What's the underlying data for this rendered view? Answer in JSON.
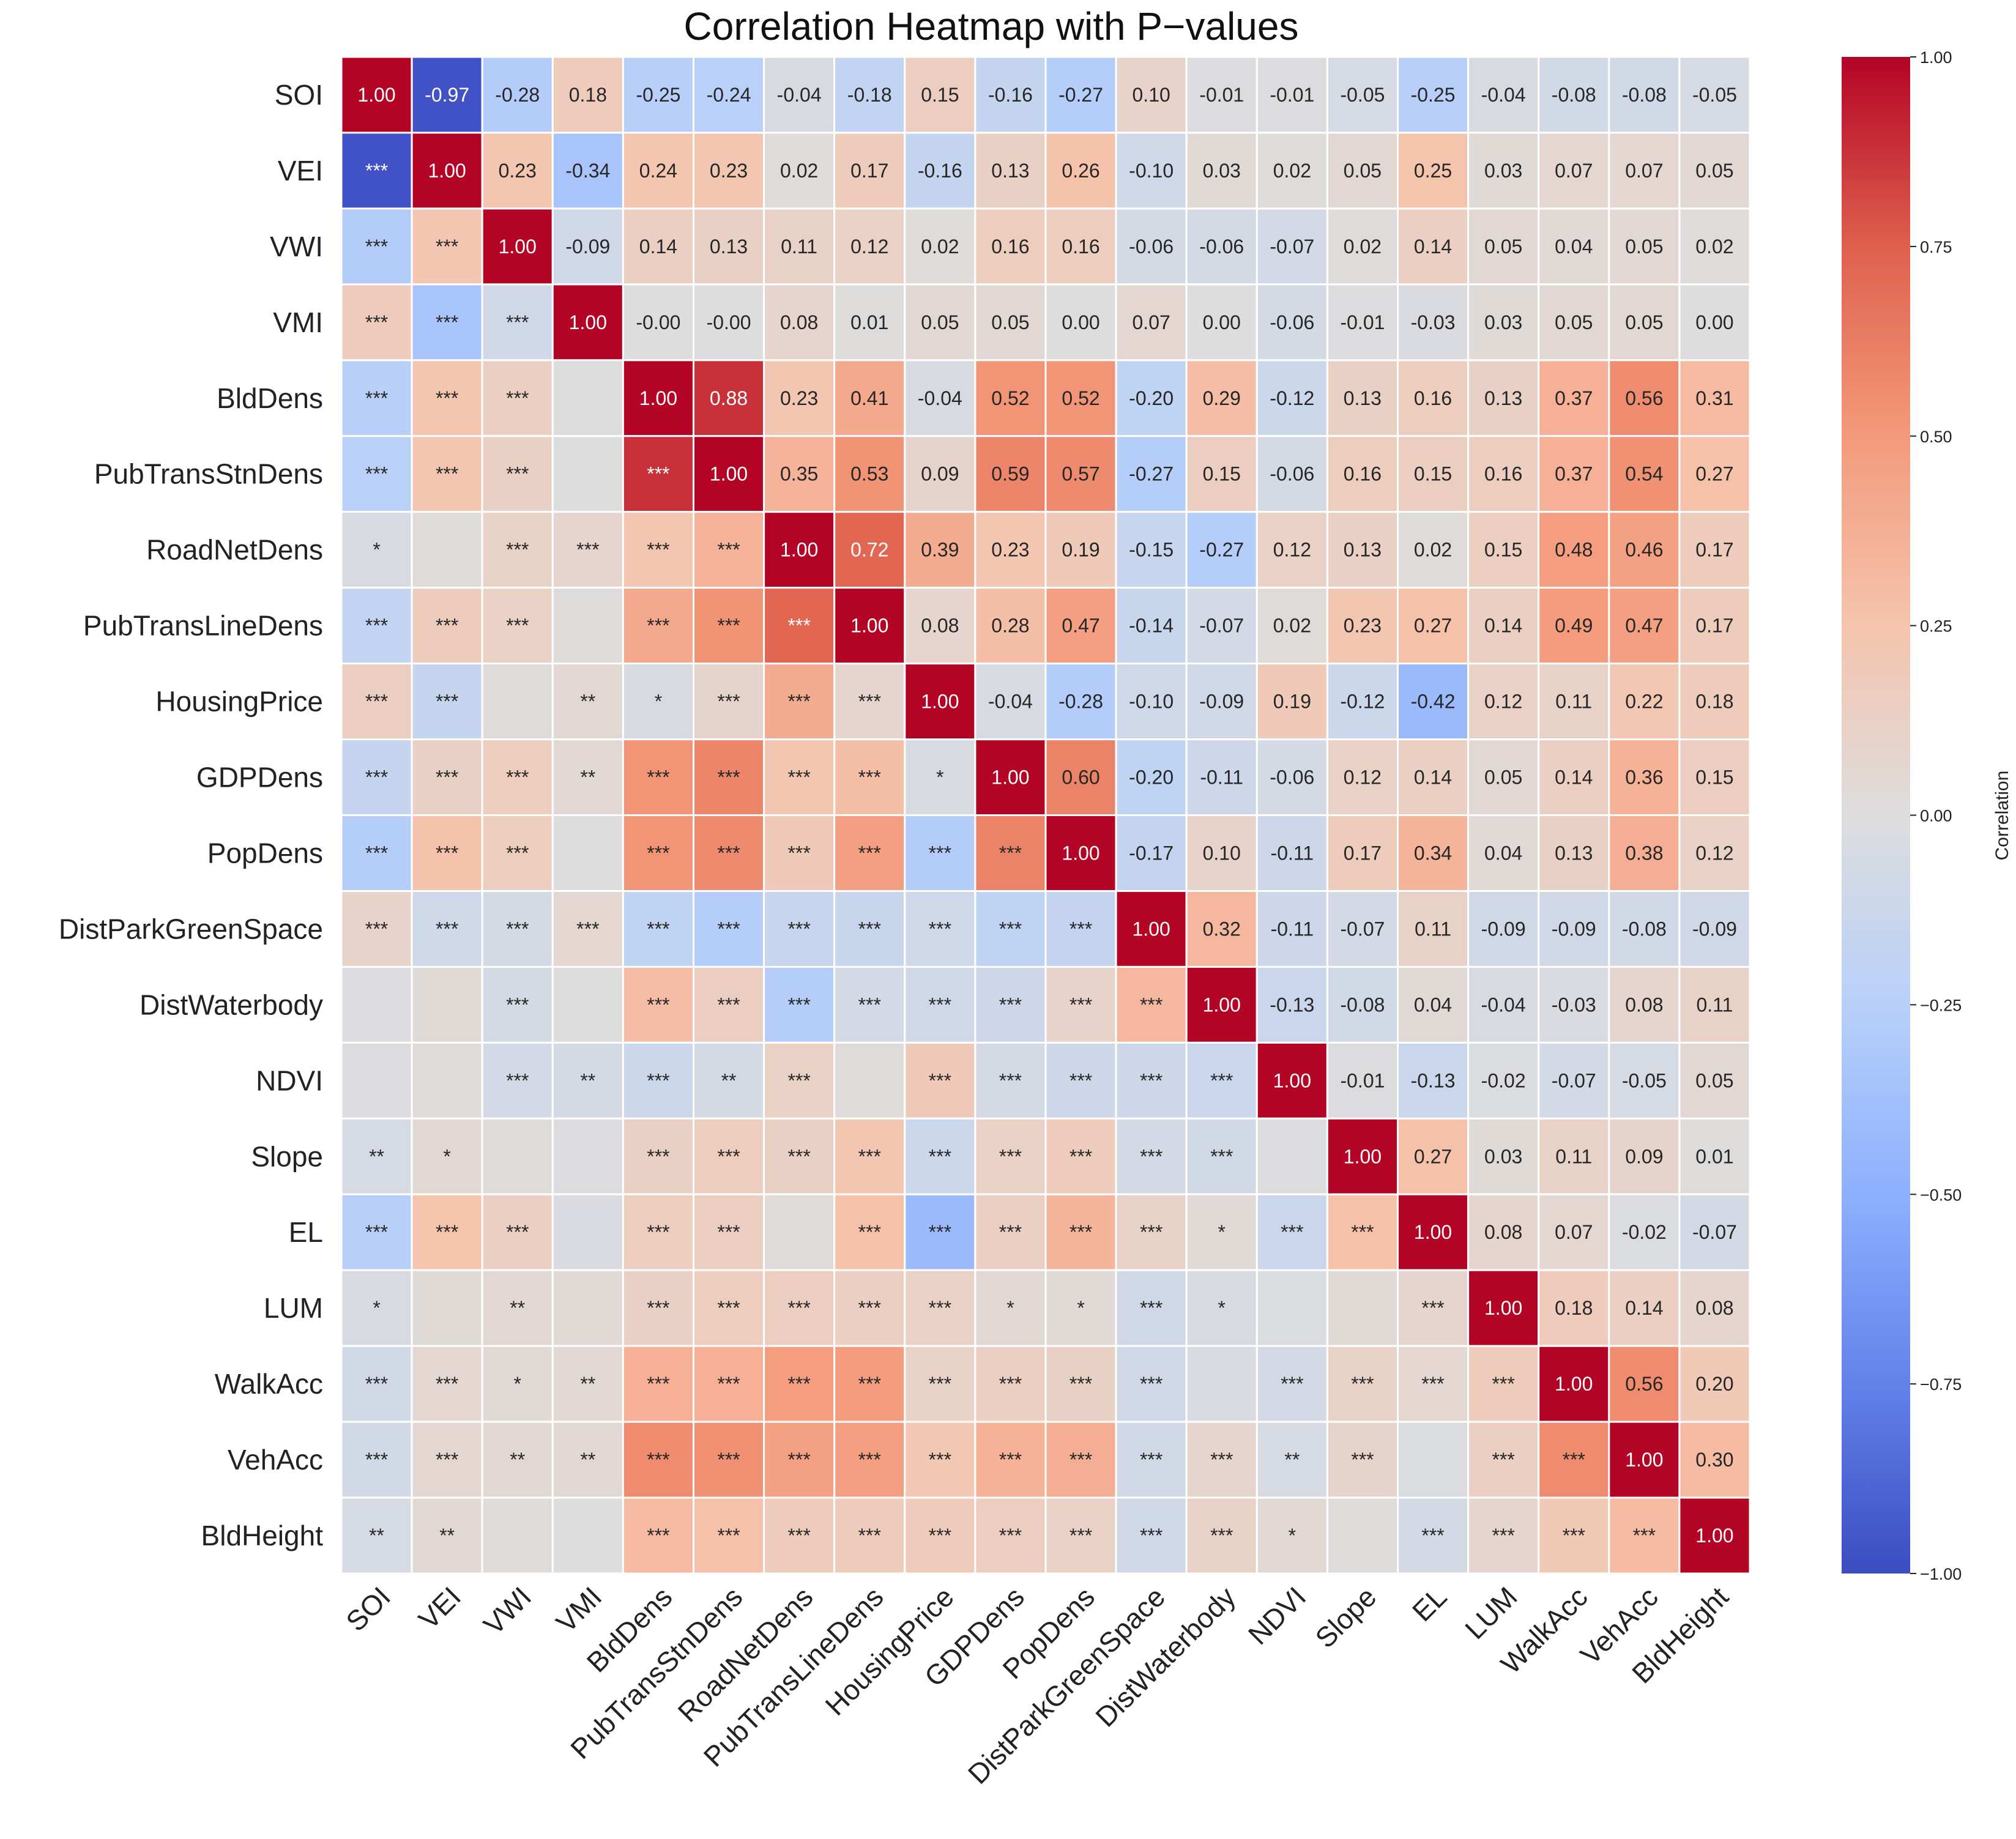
{
  "chart_data": {
    "type": "heatmap",
    "title": "Correlation Heatmap with P−values",
    "colorbar_label": "Correlation",
    "colorbar_ticks": [
      "1.00",
      "0.75",
      "0.50",
      "0.25",
      "0.00",
      "−0.25",
      "−0.50",
      "−0.75",
      "−1.00"
    ],
    "colorbar_tick_values": [
      1.0,
      0.75,
      0.5,
      0.25,
      0.0,
      -0.25,
      -0.5,
      -0.75,
      -1.0
    ],
    "vmin": -1.0,
    "vmax": 1.0,
    "colormap": "coolwarm",
    "variables": [
      "SOI",
      "VEI",
      "VWI",
      "VMI",
      "BldDens",
      "PubTransStnDens",
      "RoadNetDens",
      "PubTransLineDens",
      "HousingPrice",
      "GDPDens",
      "PopDens",
      "DistParkGreenSpace",
      "DistWaterbody",
      "NDVI",
      "Slope",
      "EL",
      "LUM",
      "WalkAcc",
      "VehAcc",
      "BldHeight"
    ],
    "upper_triangle_correlations": [
      [
        "1.00",
        "-0.97",
        "-0.28",
        "0.18",
        "-0.25",
        "-0.24",
        "-0.04",
        "-0.18",
        "0.15",
        "-0.16",
        "-0.27",
        "0.10",
        "-0.01",
        "-0.01",
        "-0.05",
        "-0.25",
        "-0.04",
        "-0.08",
        "-0.08",
        "-0.05"
      ],
      [
        "",
        "1.00",
        "0.23",
        "-0.34",
        "0.24",
        "0.23",
        "0.02",
        "0.17",
        "-0.16",
        "0.13",
        "0.26",
        "-0.10",
        "0.03",
        "0.02",
        "0.05",
        "0.25",
        "0.03",
        "0.07",
        "0.07",
        "0.05"
      ],
      [
        "",
        "",
        "1.00",
        "-0.09",
        "0.14",
        "0.13",
        "0.11",
        "0.12",
        "0.02",
        "0.16",
        "0.16",
        "-0.06",
        "-0.06",
        "-0.07",
        "0.02",
        "0.14",
        "0.05",
        "0.04",
        "0.05",
        "0.02"
      ],
      [
        "",
        "",
        "",
        "1.00",
        "-0.00",
        "-0.00",
        "0.08",
        "0.01",
        "0.05",
        "0.05",
        "0.00",
        "0.07",
        "0.00",
        "-0.06",
        "-0.01",
        "-0.03",
        "0.03",
        "0.05",
        "0.05",
        "0.00"
      ],
      [
        "",
        "",
        "",
        "",
        "1.00",
        "0.88",
        "0.23",
        "0.41",
        "-0.04",
        "0.52",
        "0.52",
        "-0.20",
        "0.29",
        "-0.12",
        "0.13",
        "0.16",
        "0.13",
        "0.37",
        "0.56",
        "0.31"
      ],
      [
        "",
        "",
        "",
        "",
        "",
        "1.00",
        "0.35",
        "0.53",
        "0.09",
        "0.59",
        "0.57",
        "-0.27",
        "0.15",
        "-0.06",
        "0.16",
        "0.15",
        "0.16",
        "0.37",
        "0.54",
        "0.27"
      ],
      [
        "",
        "",
        "",
        "",
        "",
        "",
        "1.00",
        "0.72",
        "0.39",
        "0.23",
        "0.19",
        "-0.15",
        "-0.27",
        "0.12",
        "0.13",
        "0.02",
        "0.15",
        "0.48",
        "0.46",
        "0.17"
      ],
      [
        "",
        "",
        "",
        "",
        "",
        "",
        "",
        "1.00",
        "0.08",
        "0.28",
        "0.47",
        "-0.14",
        "-0.07",
        "0.02",
        "0.23",
        "0.27",
        "0.14",
        "0.49",
        "0.47",
        "0.17"
      ],
      [
        "",
        "",
        "",
        "",
        "",
        "",
        "",
        "",
        "1.00",
        "-0.04",
        "-0.28",
        "-0.10",
        "-0.09",
        "0.19",
        "-0.12",
        "-0.42",
        "0.12",
        "0.11",
        "0.22",
        "0.18"
      ],
      [
        "",
        "",
        "",
        "",
        "",
        "",
        "",
        "",
        "",
        "1.00",
        "0.60",
        "-0.20",
        "-0.11",
        "-0.06",
        "0.12",
        "0.14",
        "0.05",
        "0.14",
        "0.36",
        "0.15"
      ],
      [
        "",
        "",
        "",
        "",
        "",
        "",
        "",
        "",
        "",
        "",
        "1.00",
        "-0.17",
        "0.10",
        "-0.11",
        "0.17",
        "0.34",
        "0.04",
        "0.13",
        "0.38",
        "0.12"
      ],
      [
        "",
        "",
        "",
        "",
        "",
        "",
        "",
        "",
        "",
        "",
        "",
        "1.00",
        "0.32",
        "-0.11",
        "-0.07",
        "0.11",
        "-0.09",
        "-0.09",
        "-0.08",
        "-0.09"
      ],
      [
        "",
        "",
        "",
        "",
        "",
        "",
        "",
        "",
        "",
        "",
        "",
        "",
        "1.00",
        "-0.13",
        "-0.08",
        "0.04",
        "-0.04",
        "-0.03",
        "0.08",
        "0.11"
      ],
      [
        "",
        "",
        "",
        "",
        "",
        "",
        "",
        "",
        "",
        "",
        "",
        "",
        "",
        "1.00",
        "-0.01",
        "-0.13",
        "-0.02",
        "-0.07",
        "-0.05",
        "0.05"
      ],
      [
        "",
        "",
        "",
        "",
        "",
        "",
        "",
        "",
        "",
        "",
        "",
        "",
        "",
        "",
        "1.00",
        "0.27",
        "0.03",
        "0.11",
        "0.09",
        "0.01"
      ],
      [
        "",
        "",
        "",
        "",
        "",
        "",
        "",
        "",
        "",
        "",
        "",
        "",
        "",
        "",
        "",
        "1.00",
        "0.08",
        "0.07",
        "-0.02",
        "-0.07"
      ],
      [
        "",
        "",
        "",
        "",
        "",
        "",
        "",
        "",
        "",
        "",
        "",
        "",
        "",
        "",
        "",
        "",
        "1.00",
        "0.18",
        "0.14",
        "0.08"
      ],
      [
        "",
        "",
        "",
        "",
        "",
        "",
        "",
        "",
        "",
        "",
        "",
        "",
        "",
        "",
        "",
        "",
        "",
        "1.00",
        "0.56",
        "0.20"
      ],
      [
        "",
        "",
        "",
        "",
        "",
        "",
        "",
        "",
        "",
        "",
        "",
        "",
        "",
        "",
        "",
        "",
        "",
        "",
        "1.00",
        "0.30"
      ],
      [
        "",
        "",
        "",
        "",
        "",
        "",
        "",
        "",
        "",
        "",
        "",
        "",
        "",
        "",
        "",
        "",
        "",
        "",
        "",
        "1.00"
      ]
    ],
    "lower_triangle_significance": [
      [],
      [
        "***"
      ],
      [
        "***",
        "***"
      ],
      [
        "***",
        "***",
        "***"
      ],
      [
        "***",
        "***",
        "***",
        ""
      ],
      [
        "***",
        "***",
        "***",
        "",
        "***"
      ],
      [
        "*",
        "",
        "***",
        "***",
        "***",
        "***"
      ],
      [
        "***",
        "***",
        "***",
        "",
        "***",
        "***",
        "***"
      ],
      [
        "***",
        "***",
        "",
        "**",
        "*",
        "***",
        "***",
        "***"
      ],
      [
        "***",
        "***",
        "***",
        "**",
        "***",
        "***",
        "***",
        "***",
        "*"
      ],
      [
        "***",
        "***",
        "***",
        "",
        "***",
        "***",
        "***",
        "***",
        "***",
        "***"
      ],
      [
        "***",
        "***",
        "***",
        "***",
        "***",
        "***",
        "***",
        "***",
        "***",
        "***",
        "***"
      ],
      [
        "",
        "",
        "***",
        "",
        "***",
        "***",
        "***",
        "***",
        "***",
        "***",
        "***",
        "***"
      ],
      [
        "",
        "",
        "***",
        "**",
        "***",
        "**",
        "***",
        "",
        "***",
        "***",
        "***",
        "***",
        "***"
      ],
      [
        "**",
        "*",
        "",
        "",
        "***",
        "***",
        "***",
        "***",
        "***",
        "***",
        "***",
        "***",
        "***",
        ""
      ],
      [
        "***",
        "***",
        "***",
        "",
        "***",
        "***",
        "",
        "***",
        "***",
        "***",
        "***",
        "***",
        "*",
        "***",
        "***"
      ],
      [
        "*",
        "",
        "**",
        "",
        "***",
        "***",
        "***",
        "***",
        "***",
        "*",
        "*",
        "***",
        "*",
        "",
        "",
        "***"
      ],
      [
        "***",
        "***",
        "*",
        "**",
        "***",
        "***",
        "***",
        "***",
        "***",
        "***",
        "***",
        "***",
        "",
        "***",
        "***",
        "***",
        "***"
      ],
      [
        "***",
        "***",
        "**",
        "**",
        "***",
        "***",
        "***",
        "***",
        "***",
        "***",
        "***",
        "***",
        "***",
        "**",
        "***",
        "",
        "***",
        "***"
      ],
      [
        "**",
        "**",
        "",
        "",
        "***",
        "***",
        "***",
        "***",
        "***",
        "***",
        "***",
        "***",
        "***",
        "*",
        "",
        "***",
        "***",
        "***",
        "***"
      ]
    ]
  }
}
